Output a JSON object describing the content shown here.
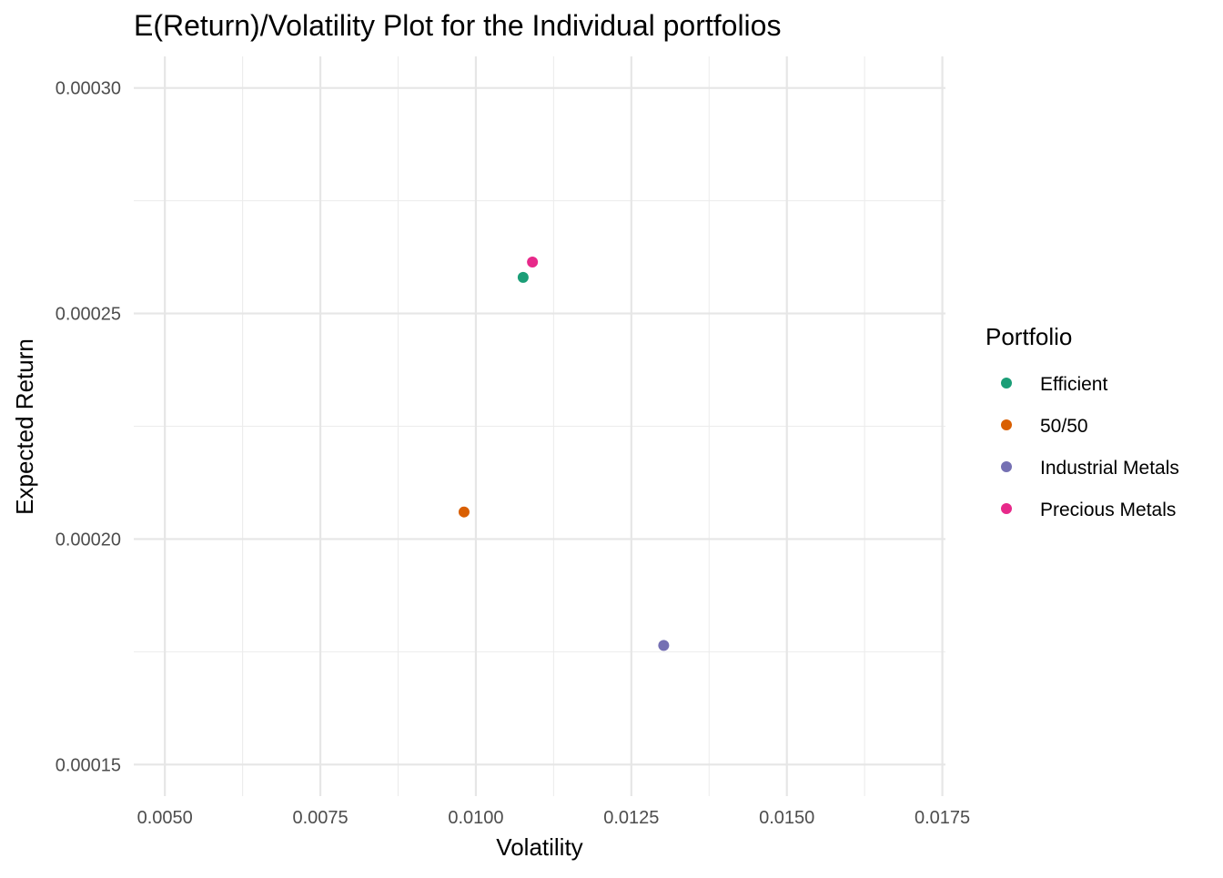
{
  "chart_data": {
    "type": "scatter",
    "title": "E(Return)/Volatility Plot for the Individual portfolios",
    "xlabel": "Volatility",
    "ylabel": "Expected Return",
    "xlim": [
      0.0045,
      0.01755
    ],
    "ylim": [
      0.000143,
      0.000307
    ],
    "x_ticks": [
      0.005,
      0.0075,
      0.01,
      0.0125,
      0.015,
      0.0175
    ],
    "x_tick_labels": [
      "0.0050",
      "0.0075",
      "0.0100",
      "0.0125",
      "0.0150",
      "0.0175"
    ],
    "y_ticks": [
      0.00015,
      0.0002,
      0.00025,
      0.0003
    ],
    "y_tick_labels": [
      "0.00015",
      "0.00020",
      "0.00025",
      "0.00030"
    ],
    "grid": true,
    "legend": {
      "title": "Portfolio",
      "placement": "right"
    },
    "series": [
      {
        "name": "Efficient",
        "color": "#1B9E77",
        "x": [
          0.01076
        ],
        "y": [
          0.000258
        ]
      },
      {
        "name": "50/50",
        "color": "#D95F02",
        "x": [
          0.00981
        ],
        "y": [
          0.000206
        ]
      },
      {
        "name": "Industrial Metals",
        "color": "#7570B3",
        "x": [
          0.01302
        ],
        "y": [
          0.0001764
        ]
      },
      {
        "name": "Precious Metals",
        "color": "#E7298A",
        "x": [
          0.01091
        ],
        "y": [
          0.0002614
        ]
      }
    ]
  }
}
